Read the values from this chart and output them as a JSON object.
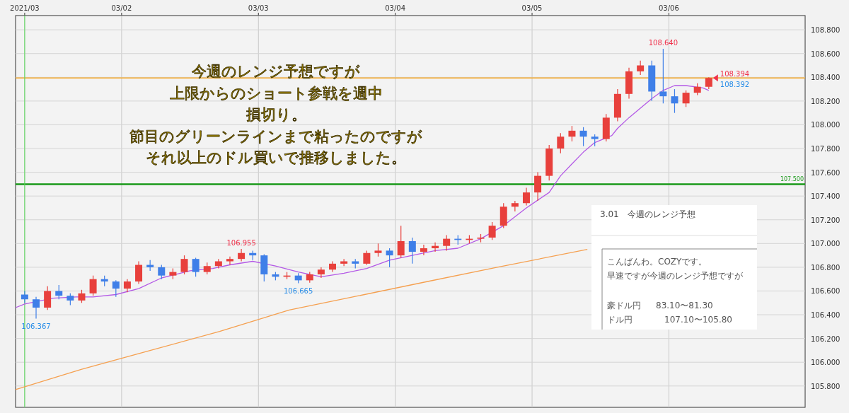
{
  "chart_data": {
    "type": "candlestick",
    "x": [
      "2021-03-01T07:00",
      "2021-03-01T09:00",
      "2021-03-01T11:00",
      "2021-03-01T13:00",
      "2021-03-01T15:00",
      "2021-03-01T17:00",
      "2021-03-01T19:00",
      "2021-03-01T21:00",
      "2021-03-01T23:00",
      "2021-03-02T01:00",
      "2021-03-02T03:00",
      "2021-03-02T05:00",
      "2021-03-02T07:00",
      "2021-03-02T09:00",
      "2021-03-02T11:00",
      "2021-03-02T13:00",
      "2021-03-02T15:00",
      "2021-03-02T17:00",
      "2021-03-02T19:00",
      "2021-03-02T21:00",
      "2021-03-02T23:00",
      "2021-03-03T01:00",
      "2021-03-03T03:00",
      "2021-03-03T05:00",
      "2021-03-03T07:00",
      "2021-03-03T09:00",
      "2021-03-03T11:00",
      "2021-03-03T13:00",
      "2021-03-03T15:00",
      "2021-03-03T17:00",
      "2021-03-03T19:00",
      "2021-03-03T21:00",
      "2021-03-03T23:00",
      "2021-03-04T01:00",
      "2021-03-04T03:00",
      "2021-03-04T05:00",
      "2021-03-04T07:00",
      "2021-03-04T09:00",
      "2021-03-04T11:00",
      "2021-03-04T13:00",
      "2021-03-04T15:00",
      "2021-03-04T17:00",
      "2021-03-04T19:00",
      "2021-03-04T21:00",
      "2021-03-04T23:00",
      "2021-03-05T01:00",
      "2021-03-05T03:00",
      "2021-03-05T05:00",
      "2021-03-05T07:00",
      "2021-03-05T09:00",
      "2021-03-05T11:00",
      "2021-03-05T13:00",
      "2021-03-05T15:00",
      "2021-03-05T17:00",
      "2021-03-05T19:00",
      "2021-03-05T21:00",
      "2021-03-05T23:00",
      "2021-03-06T01:00",
      "2021-03-06T03:00",
      "2021-03-06T05:00",
      "2021-03-06T07:00"
    ],
    "ohlc": [
      [
        106.57,
        106.6,
        106.5,
        106.53
      ],
      [
        106.53,
        106.55,
        106.367,
        106.46
      ],
      [
        106.46,
        106.64,
        106.44,
        106.6
      ],
      [
        106.6,
        106.65,
        106.53,
        106.56
      ],
      [
        106.56,
        106.58,
        106.48,
        106.52
      ],
      [
        106.52,
        106.61,
        106.5,
        106.58
      ],
      [
        106.58,
        106.73,
        106.56,
        106.7
      ],
      [
        106.7,
        106.73,
        106.64,
        106.68
      ],
      [
        106.68,
        106.69,
        106.55,
        106.62
      ],
      [
        106.62,
        106.7,
        106.59,
        106.68
      ],
      [
        106.68,
        106.85,
        106.66,
        106.82
      ],
      [
        106.82,
        106.86,
        106.77,
        106.8
      ],
      [
        106.8,
        106.82,
        106.7,
        106.73
      ],
      [
        106.73,
        106.79,
        106.7,
        106.76
      ],
      [
        106.76,
        106.9,
        106.74,
        106.87
      ],
      [
        106.87,
        106.88,
        106.72,
        106.76
      ],
      [
        106.76,
        106.84,
        106.74,
        106.81
      ],
      [
        106.81,
        106.87,
        106.79,
        106.85
      ],
      [
        106.85,
        106.89,
        106.82,
        106.87
      ],
      [
        106.87,
        106.955,
        106.85,
        106.92
      ],
      [
        106.92,
        106.94,
        106.86,
        106.9
      ],
      [
        106.9,
        106.91,
        106.68,
        106.74
      ],
      [
        106.74,
        106.76,
        106.69,
        106.72
      ],
      [
        106.72,
        106.76,
        106.7,
        106.73
      ],
      [
        106.73,
        106.75,
        106.665,
        106.69
      ],
      [
        106.69,
        106.76,
        106.67,
        106.74
      ],
      [
        106.74,
        106.8,
        106.71,
        106.78
      ],
      [
        106.78,
        106.85,
        106.76,
        106.83
      ],
      [
        106.83,
        106.87,
        106.81,
        106.85
      ],
      [
        106.85,
        106.87,
        106.79,
        106.83
      ],
      [
        106.83,
        106.94,
        106.82,
        106.92
      ],
      [
        106.92,
        107.0,
        106.89,
        106.94
      ],
      [
        106.94,
        106.96,
        106.8,
        106.9
      ],
      [
        106.9,
        107.15,
        106.88,
        107.02
      ],
      [
        107.02,
        107.05,
        106.83,
        106.93
      ],
      [
        106.93,
        106.99,
        106.9,
        106.96
      ],
      [
        106.96,
        107.01,
        106.93,
        106.98
      ],
      [
        106.98,
        107.07,
        106.94,
        107.04
      ],
      [
        107.04,
        107.07,
        106.99,
        107.03
      ],
      [
        107.03,
        107.07,
        107.0,
        107.04
      ],
      [
        107.04,
        107.08,
        107.01,
        107.05
      ],
      [
        107.05,
        107.18,
        107.03,
        107.15
      ],
      [
        107.15,
        107.34,
        107.13,
        107.31
      ],
      [
        107.31,
        107.36,
        107.27,
        107.34
      ],
      [
        107.34,
        107.47,
        107.32,
        107.43
      ],
      [
        107.43,
        107.6,
        107.36,
        107.57
      ],
      [
        107.57,
        107.83,
        107.53,
        107.8
      ],
      [
        107.8,
        107.93,
        107.76,
        107.9
      ],
      [
        107.9,
        107.99,
        107.86,
        107.95
      ],
      [
        107.95,
        107.98,
        107.82,
        107.9
      ],
      [
        107.9,
        107.92,
        107.82,
        107.88
      ],
      [
        107.88,
        108.09,
        107.86,
        108.06
      ],
      [
        108.06,
        108.3,
        108.03,
        108.26
      ],
      [
        108.26,
        108.48,
        108.22,
        108.45
      ],
      [
        108.45,
        108.54,
        108.42,
        108.5
      ],
      [
        108.5,
        108.54,
        108.2,
        108.28
      ],
      [
        108.28,
        108.64,
        108.18,
        108.24
      ],
      [
        108.24,
        108.3,
        108.1,
        108.18
      ],
      [
        108.18,
        108.29,
        108.15,
        108.27
      ],
      [
        108.27,
        108.35,
        108.25,
        108.32
      ],
      [
        108.32,
        108.4,
        108.3,
        108.394
      ]
    ],
    "colors": [
      "#3f7fe8",
      "#3f7fe8",
      "#e8403c",
      "#3f7fe8",
      "#3f7fe8",
      "#e8403c",
      "#e8403c",
      "#3f7fe8",
      "#3f7fe8",
      "#e8403c",
      "#e8403c",
      "#3f7fe8",
      "#3f7fe8",
      "#e8403c",
      "#e8403c",
      "#3f7fe8",
      "#e8403c",
      "#e8403c",
      "#e8403c",
      "#e8403c",
      "#3f7fe8",
      "#3f7fe8",
      "#3f7fe8",
      "#e8403c",
      "#3f7fe8",
      "#e8403c",
      "#e8403c",
      "#e8403c",
      "#e8403c",
      "#3f7fe8",
      "#e8403c",
      "#e8403c",
      "#3f7fe8",
      "#e8403c",
      "#3f7fe8",
      "#e8403c",
      "#e8403c",
      "#e8403c",
      "#3f7fe8",
      "#e8403c",
      "#e8403c",
      "#e8403c",
      "#e8403c",
      "#e8403c",
      "#e8403c",
      "#e8403c",
      "#e8403c",
      "#e8403c",
      "#e8403c",
      "#3f7fe8",
      "#3f7fe8",
      "#e8403c",
      "#e8403c",
      "#e8403c",
      "#e8403c",
      "#3f7fe8",
      "#3f7fe8",
      "#3f7fe8",
      "#e8403c",
      "#e8403c",
      "#e8403c"
    ],
    "series": [
      {
        "type": "line",
        "color": "#b45ae6",
        "x": [
          "2021-03-01T05:24",
          "2021-03-01T07:00",
          "2021-03-01T12:00",
          "2021-03-01T16:00",
          "2021-03-01T19:00",
          "2021-03-01T23:00",
          "2021-03-02T03:00",
          "2021-03-02T07:00",
          "2021-03-02T12:00",
          "2021-03-02T16:00",
          "2021-03-02T19:00",
          "2021-03-02T23:00",
          "2021-03-03T03:00",
          "2021-03-03T07:00",
          "2021-03-03T11:00",
          "2021-03-03T15:00",
          "2021-03-03T19:00",
          "2021-03-03T23:00",
          "2021-03-04T03:00",
          "2021-03-04T07:00",
          "2021-03-04T11:00",
          "2021-03-04T15:00",
          "2021-03-04T19:00",
          "2021-03-04T23:00",
          "2021-03-05T03:00",
          "2021-03-05T05:00",
          "2021-03-05T07:00",
          "2021-03-05T09:00",
          "2021-03-05T11:00",
          "2021-03-05T14:00",
          "2021-03-05T15:00",
          "2021-03-05T17:00",
          "2021-03-05T19:00",
          "2021-03-05T21:00",
          "2021-03-05T23:00",
          "2021-03-06T01:00",
          "2021-03-06T03:00",
          "2021-03-06T06:00",
          "2021-03-06T07:00"
        ],
        "values": [
          106.46,
          106.49,
          106.54,
          106.55,
          106.55,
          106.57,
          106.62,
          106.71,
          106.77,
          106.79,
          106.82,
          106.85,
          106.81,
          106.76,
          106.72,
          106.75,
          106.79,
          106.86,
          106.9,
          106.94,
          106.96,
          107.04,
          107.15,
          107.3,
          107.43,
          107.57,
          107.67,
          107.77,
          107.85,
          107.91,
          107.97,
          108.06,
          108.14,
          108.22,
          108.29,
          108.33,
          108.33,
          108.31,
          108.29
        ]
      },
      {
        "type": "line",
        "color": "#f5a050",
        "x": [
          "2021-03-01T05:24",
          "2021-03-01T16:54",
          "2021-03-02T05:06",
          "2021-03-02T17:12",
          "2021-03-03T05:24",
          "2021-03-03T17:36",
          "2021-03-04T05:42",
          "2021-03-04T17:54",
          "2021-03-05T09:42"
        ],
        "values": [
          105.77,
          105.94,
          106.1,
          106.26,
          106.44,
          106.56,
          106.68,
          106.8,
          106.95
        ]
      }
    ],
    "xlim": [
      "2021-03-01T05:24",
      "2021-03-06T23:54"
    ],
    "ylim": [
      105.62,
      108.92
    ],
    "xticks": [
      {
        "value": "2021-03-01T07:00",
        "label": "2021/03"
      },
      {
        "value": "2021-03-02",
        "label": "03/02"
      },
      {
        "value": "2021-03-03",
        "label": "03/03"
      },
      {
        "value": "2021-03-04",
        "label": "03/04"
      },
      {
        "value": "2021-03-05",
        "label": "03/05"
      },
      {
        "value": "2021-03-06",
        "label": "03/06"
      }
    ],
    "yticks": [
      {
        "value": 105.8,
        "label": "105.800"
      },
      {
        "value": 106.0,
        "label": "106.000"
      },
      {
        "value": 106.2,
        "label": "106.200"
      },
      {
        "value": 106.4,
        "label": "106.400"
      },
      {
        "value": 106.6,
        "label": "106.600"
      },
      {
        "value": 106.8,
        "label": "106.800"
      },
      {
        "value": 107.0,
        "label": "107.000"
      },
      {
        "value": 107.2,
        "label": "107.200"
      },
      {
        "value": 107.4,
        "label": "107.400"
      },
      {
        "value": 107.6,
        "label": "107.600"
      },
      {
        "value": 107.8,
        "label": "107.800"
      },
      {
        "value": 108.0,
        "label": "108.000"
      },
      {
        "value": 108.2,
        "label": "108.200"
      },
      {
        "value": 108.4,
        "label": "108.400"
      },
      {
        "value": 108.6,
        "label": "108.600"
      },
      {
        "value": 108.8,
        "label": "108.800"
      }
    ],
    "grid": true,
    "ref_lines": [
      {
        "axis": "y",
        "value": 107.5,
        "label": "107.500",
        "color": "#1a9a1a"
      },
      {
        "axis": "y",
        "value": 108.394,
        "color": "#f5a623"
      },
      {
        "axis": "x",
        "value": "2021-03-01T07:00",
        "color": "#55dd55"
      }
    ],
    "annotations": [
      "今週のレンジ予想ですが",
      "上限からのショート参戦を週中",
      "損切り。",
      "節目のグリーンラインまで粘ったのですが",
      "それ以上のドル買いで推移しました。",
      "3.01　今週のレンジ予想",
      "こんばんわ。COZYです。",
      "早速ですが今週のレンジ予想ですが",
      "豪ドル円　83.10〜81.30",
      "ドル円　　107.10〜105.80",
      {
        "text": "106.367",
        "x": "2021-03-01T09:00",
        "y": 106.367
      },
      {
        "text": "106.955",
        "x": "2021-03-02T21:00",
        "y": 106.955
      },
      {
        "text": "106.665",
        "x": "2021-03-03T07:00",
        "y": 106.665
      },
      {
        "text": "108.640",
        "x": "2021-03-05T23:00",
        "y": 108.64
      },
      {
        "text": "108.394",
        "x": "2021-03-06T07:00",
        "y": 108.394
      },
      {
        "text": "108.392",
        "x": "2021-03-06T07:00",
        "y": 108.392
      }
    ]
  }
}
